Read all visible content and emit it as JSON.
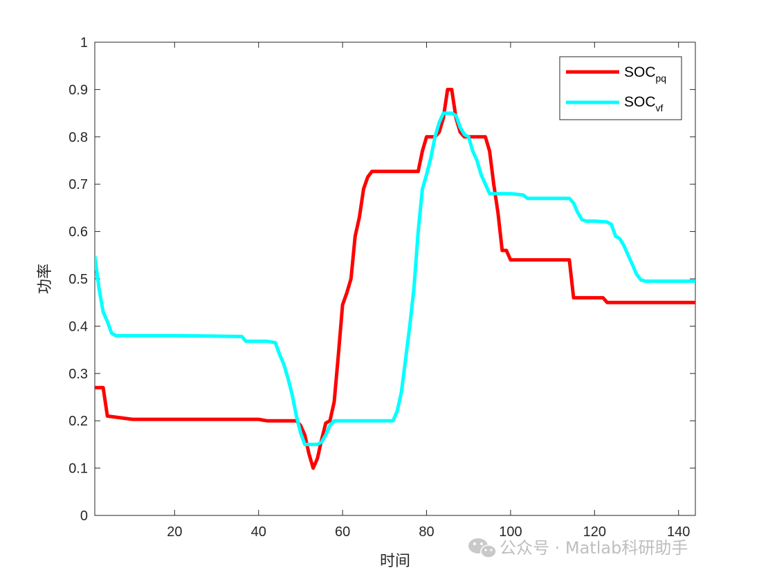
{
  "chart_data": {
    "type": "line",
    "title": "",
    "xlabel": "时间",
    "ylabel": "功率",
    "xlim": [
      1,
      144
    ],
    "ylim": [
      0,
      1
    ],
    "xticks": [
      "20",
      "40",
      "60",
      "80",
      "100",
      "120",
      "140"
    ],
    "yticks": [
      "0",
      "0.1",
      "0.2",
      "0.3",
      "0.4",
      "0.5",
      "0.6",
      "0.7",
      "0.8",
      "0.9",
      "1"
    ],
    "grid": false,
    "legend_position": "top-right",
    "series": [
      {
        "name_main": "SOC",
        "name_sub": "pq",
        "color": "#ff0000",
        "x": [
          1,
          3,
          4,
          10,
          40,
          42,
          49,
          50,
          51,
          52,
          53,
          54,
          55,
          56,
          57,
          58,
          59,
          60,
          61,
          62,
          63,
          64,
          65,
          66,
          67,
          70,
          75,
          78,
          79,
          80,
          82,
          83,
          84,
          85,
          86,
          87,
          88,
          89,
          90,
          94,
          95,
          96,
          97,
          98,
          99,
          100,
          114,
          115,
          122,
          123,
          144
        ],
        "y": [
          0.27,
          0.27,
          0.21,
          0.203,
          0.203,
          0.2,
          0.2,
          0.19,
          0.17,
          0.13,
          0.1,
          0.12,
          0.16,
          0.195,
          0.2,
          0.24,
          0.34,
          0.445,
          0.47,
          0.5,
          0.59,
          0.63,
          0.69,
          0.715,
          0.727,
          0.727,
          0.727,
          0.727,
          0.77,
          0.8,
          0.8,
          0.81,
          0.84,
          0.9,
          0.9,
          0.84,
          0.81,
          0.8,
          0.8,
          0.8,
          0.77,
          0.7,
          0.64,
          0.56,
          0.56,
          0.54,
          0.54,
          0.46,
          0.46,
          0.45,
          0.45
        ]
      },
      {
        "name_main": "SOC",
        "name_sub": "vf",
        "color": "#00ffff",
        "x": [
          1,
          2,
          3,
          4,
          5,
          6,
          10,
          20,
          36,
          37,
          42,
          44,
          45,
          46,
          47,
          48,
          49,
          50,
          51,
          52,
          53,
          54,
          55,
          56,
          57,
          58,
          60,
          65,
          70,
          72,
          73,
          74,
          75,
          76,
          77,
          78,
          79,
          80,
          81,
          82,
          83,
          84,
          85,
          86,
          87,
          88,
          89,
          90,
          91,
          92,
          93,
          94,
          95,
          96,
          100,
          103,
          104,
          114,
          115,
          116,
          117,
          118,
          120,
          123,
          124,
          125,
          126,
          127,
          128,
          129,
          130,
          131,
          132,
          133,
          144
        ],
        "y": [
          0.548,
          0.48,
          0.43,
          0.41,
          0.385,
          0.38,
          0.38,
          0.38,
          0.378,
          0.368,
          0.368,
          0.365,
          0.34,
          0.32,
          0.29,
          0.255,
          0.21,
          0.175,
          0.15,
          0.15,
          0.15,
          0.15,
          0.155,
          0.17,
          0.19,
          0.2,
          0.2,
          0.2,
          0.2,
          0.2,
          0.22,
          0.26,
          0.33,
          0.4,
          0.48,
          0.6,
          0.69,
          0.72,
          0.755,
          0.8,
          0.83,
          0.85,
          0.85,
          0.85,
          0.845,
          0.82,
          0.805,
          0.8,
          0.77,
          0.75,
          0.72,
          0.7,
          0.68,
          0.68,
          0.68,
          0.677,
          0.67,
          0.67,
          0.66,
          0.64,
          0.625,
          0.622,
          0.622,
          0.62,
          0.615,
          0.59,
          0.585,
          0.57,
          0.55,
          0.53,
          0.51,
          0.498,
          0.495,
          0.495,
          0.495
        ]
      }
    ]
  },
  "watermark": {
    "text": "公众号 · Matlab科研助手",
    "icon": "wechat-icon"
  }
}
